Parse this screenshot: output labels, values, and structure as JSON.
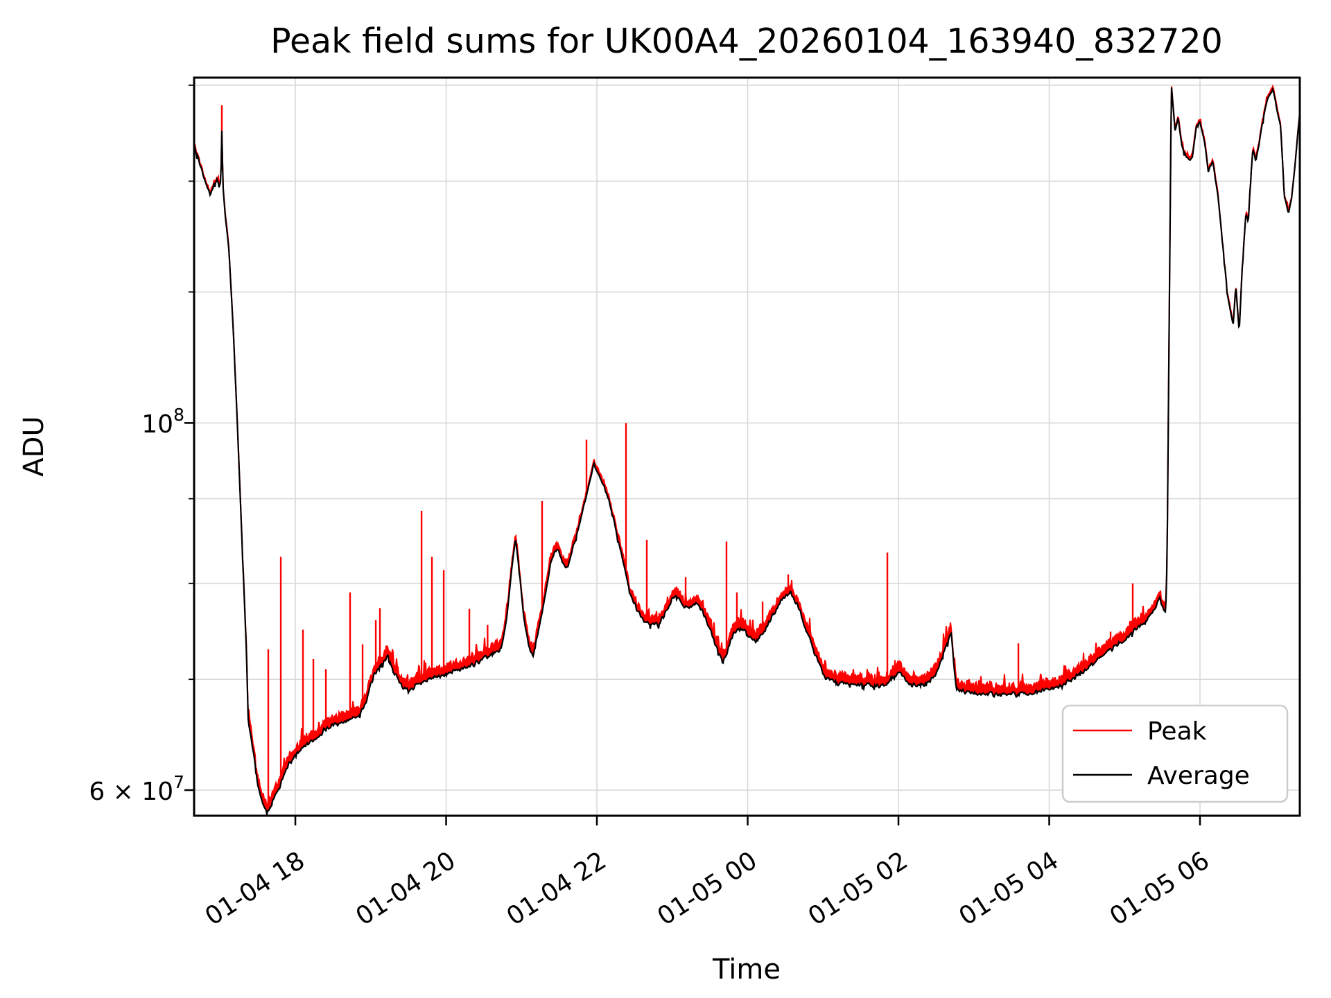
{
  "figure": {
    "background": "#ffffff"
  },
  "chart_data": {
    "type": "line",
    "title": "Peak field sums for UK00A4_20260104_163940_832720",
    "xlabel": "Time",
    "ylabel": "ADU",
    "x_axis": {
      "unit": "hours from 01-04 00:00",
      "range_hours": [
        16.657,
        31.324
      ],
      "ticks": [
        {
          "label": "01-04 18",
          "t": 18
        },
        {
          "label": "01-04 20",
          "t": 20
        },
        {
          "label": "01-04 22",
          "t": 22
        },
        {
          "label": "01-05 00",
          "t": 24
        },
        {
          "label": "01-05 02",
          "t": 26
        },
        {
          "label": "01-05 04",
          "t": 28
        },
        {
          "label": "01-05 06",
          "t": 30
        }
      ],
      "tick_rotation_deg": -33
    },
    "y_axis": {
      "scale": "log",
      "ylim": [
        57900000.0,
        161700000.0
      ],
      "major_ticks": [
        {
          "value": 100000000.0,
          "base": "10",
          "exp": "8"
        },
        {
          "value": 60000000.0,
          "base": "6 × 10",
          "exp": "7"
        }
      ],
      "grid_values": [
        60000000.0,
        70000000.0,
        80000000.0,
        90000000.0,
        100000000.0,
        120000000.0,
        140000000.0,
        160000000.0
      ],
      "grid_on": true
    },
    "legend": {
      "position": "lower right",
      "items": [
        {
          "label": "Peak",
          "color": "#ff0000"
        },
        {
          "label": "Average",
          "color": "#000000"
        }
      ]
    },
    "series": [
      {
        "name": "Peak",
        "color": "#ff0000",
        "style": "noisy band above Average plus isolated spikes",
        "band_fraction_low": 0.016,
        "band_fraction_high": 0.005,
        "spikes": [
          [
            17.025,
            155600000.0
          ],
          [
            17.641,
            73000000.0
          ],
          [
            17.807,
            83000000.0
          ],
          [
            18.101,
            75000000.0
          ],
          [
            18.239,
            72000000.0
          ],
          [
            18.405,
            71000000.0
          ],
          [
            18.726,
            79000000.0
          ],
          [
            18.892,
            73500000.0
          ],
          [
            19.067,
            76000000.0
          ],
          [
            19.122,
            77300000.0
          ],
          [
            19.674,
            88500000.0
          ],
          [
            19.812,
            83000000.0
          ],
          [
            19.968,
            81500000.0
          ],
          [
            20.308,
            77200000.0
          ],
          [
            20.55,
            75500000.0
          ],
          [
            21.273,
            89700000.0
          ],
          [
            21.862,
            97700000.0
          ],
          [
            22.386,
            100000000.0
          ],
          [
            22.662,
            85000000.0
          ],
          [
            23.177,
            80700000.0
          ],
          [
            23.719,
            84800000.0
          ],
          [
            23.857,
            79000000.0
          ],
          [
            24.198,
            78000000.0
          ],
          [
            24.538,
            81000000.0
          ],
          [
            25.853,
            83500000.0
          ],
          [
            27.591,
            73600000.0
          ],
          [
            28.657,
            72700000.0
          ],
          [
            28.814,
            74800000.0
          ],
          [
            29.108,
            80000000.0
          ]
        ]
      },
      {
        "name": "Average",
        "color": "#000000",
        "points": [
          [
            16.657,
            147000000.0
          ],
          [
            16.73,
            143500000.0
          ],
          [
            16.8,
            140200000.0
          ],
          [
            16.87,
            137200000.0
          ],
          [
            16.92,
            139200000.0
          ],
          [
            16.96,
            140500000.0
          ],
          [
            16.99,
            138800000.0
          ],
          [
            17.01,
            139800000.0
          ],
          [
            17.025,
            150300000.0
          ],
          [
            17.04,
            139000000.0
          ],
          [
            17.07,
            133500000.0
          ],
          [
            17.12,
            127000000.0
          ],
          [
            17.18,
            113000000.0
          ],
          [
            17.23,
            100000000.0
          ],
          [
            17.27,
            90000000.0
          ],
          [
            17.31,
            81000000.0
          ],
          [
            17.35,
            73000000.0
          ],
          [
            17.375,
            66100000.0
          ],
          [
            17.42,
            64200000.0
          ],
          [
            17.46,
            62500000.0
          ],
          [
            17.5,
            60400000.0
          ],
          [
            17.55,
            59200000.0
          ],
          [
            17.62,
            58150000.0
          ],
          [
            17.69,
            58900000.0
          ],
          [
            17.73,
            59500000.0
          ],
          [
            17.79,
            60200000.0
          ],
          [
            17.88,
            61800000.0
          ],
          [
            17.97,
            62700000.0
          ],
          [
            18.13,
            63800000.0
          ],
          [
            18.27,
            64500000.0
          ],
          [
            18.4,
            65300000.0
          ],
          [
            18.54,
            65800000.0
          ],
          [
            18.68,
            66100000.0
          ],
          [
            18.84,
            66400000.0
          ],
          [
            18.92,
            67500000.0
          ],
          [
            19.0,
            69500000.0
          ],
          [
            19.05,
            70600000.0
          ],
          [
            19.12,
            71200000.0
          ],
          [
            19.18,
            71900000.0
          ],
          [
            19.23,
            72200000.0
          ],
          [
            19.3,
            70800000.0
          ],
          [
            19.42,
            69200000.0
          ],
          [
            19.49,
            68900000.0
          ],
          [
            19.6,
            69400000.0
          ],
          [
            19.75,
            70000000.0
          ],
          [
            19.88,
            70300000.0
          ],
          [
            20.0,
            70500000.0
          ],
          [
            20.15,
            70900000.0
          ],
          [
            20.3,
            71200000.0
          ],
          [
            20.45,
            71800000.0
          ],
          [
            20.6,
            72400000.0
          ],
          [
            20.73,
            73000000.0
          ],
          [
            20.8,
            76000000.0
          ],
          [
            20.87,
            81500000.0
          ],
          [
            20.92,
            85200000.0
          ],
          [
            20.97,
            81500000.0
          ],
          [
            21.03,
            76200000.0
          ],
          [
            21.1,
            73200000.0
          ],
          [
            21.15,
            72200000.0
          ],
          [
            21.22,
            74800000.0
          ],
          [
            21.3,
            78000000.0
          ],
          [
            21.38,
            82000000.0
          ],
          [
            21.47,
            84200000.0
          ],
          [
            21.53,
            82700000.0
          ],
          [
            21.6,
            81500000.0
          ],
          [
            21.7,
            84500000.0
          ],
          [
            21.8,
            88000000.0
          ],
          [
            21.9,
            92000000.0
          ],
          [
            21.96,
            94500000.0
          ],
          [
            22.02,
            93000000.0
          ],
          [
            22.11,
            91200000.0
          ],
          [
            22.2,
            88300000.0
          ],
          [
            22.28,
            85000000.0
          ],
          [
            22.36,
            82000000.0
          ],
          [
            22.44,
            79000000.0
          ],
          [
            22.51,
            77500000.0
          ],
          [
            22.6,
            76200000.0
          ],
          [
            22.7,
            75700000.0
          ],
          [
            22.82,
            75600000.0
          ],
          [
            22.93,
            77000000.0
          ],
          [
            23.03,
            78700000.0
          ],
          [
            23.12,
            77800000.0
          ],
          [
            23.19,
            77200000.0
          ],
          [
            23.27,
            77600000.0
          ],
          [
            23.34,
            77900000.0
          ],
          [
            23.46,
            76000000.0
          ],
          [
            23.6,
            73000000.0
          ],
          [
            23.67,
            71600000.0
          ],
          [
            23.74,
            73000000.0
          ],
          [
            23.8,
            74500000.0
          ],
          [
            23.88,
            75000000.0
          ],
          [
            23.95,
            75000000.0
          ],
          [
            24.08,
            73800000.0
          ],
          [
            24.2,
            74500000.0
          ],
          [
            24.33,
            76500000.0
          ],
          [
            24.43,
            78000000.0
          ],
          [
            24.57,
            79000000.0
          ],
          [
            24.66,
            77500000.0
          ],
          [
            24.75,
            75700000.0
          ],
          [
            24.87,
            73000000.0
          ],
          [
            25.02,
            70200000.0
          ],
          [
            25.21,
            69600000.0
          ],
          [
            25.48,
            69500000.0
          ],
          [
            25.83,
            69400000.0
          ],
          [
            25.93,
            70200000.0
          ],
          [
            26.01,
            70800000.0
          ],
          [
            26.1,
            69800000.0
          ],
          [
            26.19,
            69400000.0
          ],
          [
            26.35,
            69400000.0
          ],
          [
            26.5,
            70500000.0
          ],
          [
            26.59,
            72400000.0
          ],
          [
            26.7,
            74800000.0
          ],
          [
            26.74,
            71000000.0
          ],
          [
            26.77,
            69000000.0
          ],
          [
            26.9,
            68700000.0
          ],
          [
            27.1,
            68600000.0
          ],
          [
            27.42,
            68500000.0
          ],
          [
            27.7,
            68600000.0
          ],
          [
            27.88,
            68800000.0
          ],
          [
            28.15,
            69300000.0
          ],
          [
            28.46,
            70800000.0
          ],
          [
            28.68,
            72200000.0
          ],
          [
            28.89,
            73300000.0
          ],
          [
            29.11,
            74800000.0
          ],
          [
            29.26,
            75700000.0
          ],
          [
            29.4,
            77200000.0
          ],
          [
            29.47,
            78400000.0
          ],
          [
            29.51,
            77400000.0
          ],
          [
            29.545,
            76700000.0
          ],
          [
            29.565,
            84000000.0
          ],
          [
            29.59,
            113000000.0
          ],
          [
            29.62,
            160000000.0
          ],
          [
            29.65,
            154000000.0
          ],
          [
            29.67,
            150000000.0
          ],
          [
            29.71,
            153000000.0
          ],
          [
            29.76,
            147000000.0
          ],
          [
            29.81,
            145000000.0
          ],
          [
            29.85,
            144000000.0
          ],
          [
            29.9,
            145000000.0
          ],
          [
            29.95,
            151000000.0
          ],
          [
            30.0,
            152000000.0
          ],
          [
            30.06,
            148000000.0
          ],
          [
            30.11,
            142000000.0
          ],
          [
            30.17,
            144000000.0
          ],
          [
            30.24,
            137000000.0
          ],
          [
            30.31,
            127000000.0
          ],
          [
            30.37,
            119000000.0
          ],
          [
            30.44,
            114600000.0
          ],
          [
            30.475,
            121000000.0
          ],
          [
            30.52,
            113500000.0
          ],
          [
            30.56,
            124000000.0
          ],
          [
            30.59,
            130000000.0
          ],
          [
            30.61,
            134000000.0
          ],
          [
            30.64,
            132000000.0
          ],
          [
            30.67,
            140000000.0
          ],
          [
            30.7,
            146000000.0
          ],
          [
            30.74,
            144000000.0
          ],
          [
            30.78,
            147000000.0
          ],
          [
            30.82,
            151000000.0
          ],
          [
            30.87,
            155500000.0
          ],
          [
            30.91,
            157500000.0
          ],
          [
            30.97,
            159000000.0
          ],
          [
            31.03,
            154000000.0
          ],
          [
            31.07,
            151000000.0
          ],
          [
            31.12,
            137000000.0
          ],
          [
            31.17,
            134000000.0
          ],
          [
            31.21,
            136000000.0
          ],
          [
            31.26,
            143000000.0
          ],
          [
            31.3,
            150000000.0
          ],
          [
            31.324,
            154000000.0
          ]
        ]
      }
    ]
  }
}
